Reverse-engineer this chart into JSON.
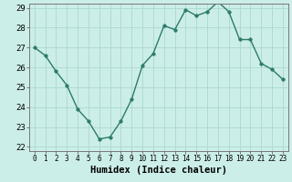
{
  "x": [
    0,
    1,
    2,
    3,
    4,
    5,
    6,
    7,
    8,
    9,
    10,
    11,
    12,
    13,
    14,
    15,
    16,
    17,
    18,
    19,
    20,
    21,
    22,
    23
  ],
  "y": [
    27.0,
    26.6,
    25.8,
    25.1,
    23.9,
    23.3,
    22.4,
    22.5,
    23.3,
    24.4,
    26.1,
    26.7,
    28.1,
    27.9,
    28.9,
    28.6,
    28.8,
    29.3,
    28.8,
    27.4,
    27.4,
    26.2,
    25.9,
    25.4
  ],
  "xlabel": "Humidex (Indice chaleur)",
  "ylim": [
    22,
    29
  ],
  "xlim": [
    -0.5,
    23.5
  ],
  "yticks": [
    22,
    23,
    24,
    25,
    26,
    27,
    28,
    29
  ],
  "xticks": [
    0,
    1,
    2,
    3,
    4,
    5,
    6,
    7,
    8,
    9,
    10,
    11,
    12,
    13,
    14,
    15,
    16,
    17,
    18,
    19,
    20,
    21,
    22,
    23
  ],
  "line_color": "#2d7a6a",
  "marker_color": "#2d7a6a",
  "bg_color": "#cceee8",
  "grid_color": "#aad8d0",
  "spine_color": "#777777",
  "ytick_fontsize": 6.5,
  "xtick_fontsize": 5.5,
  "xlabel_fontsize": 7.5,
  "marker_size": 2.5,
  "line_width": 1.0
}
